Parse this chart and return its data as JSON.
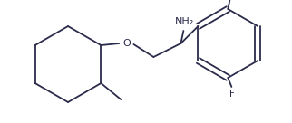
{
  "bg_color": "#ffffff",
  "line_color": "#2b2b4b",
  "line_width": 1.3,
  "font_size_label": 7.5,
  "label_color": "#2b2b4b",
  "NH2_label": "NH₂",
  "F_label": "F",
  "O_label": "O",
  "figsize": [
    3.22,
    1.36
  ],
  "dpi": 100,
  "xlim": [
    0,
    322
  ],
  "ylim": [
    0,
    136
  ]
}
